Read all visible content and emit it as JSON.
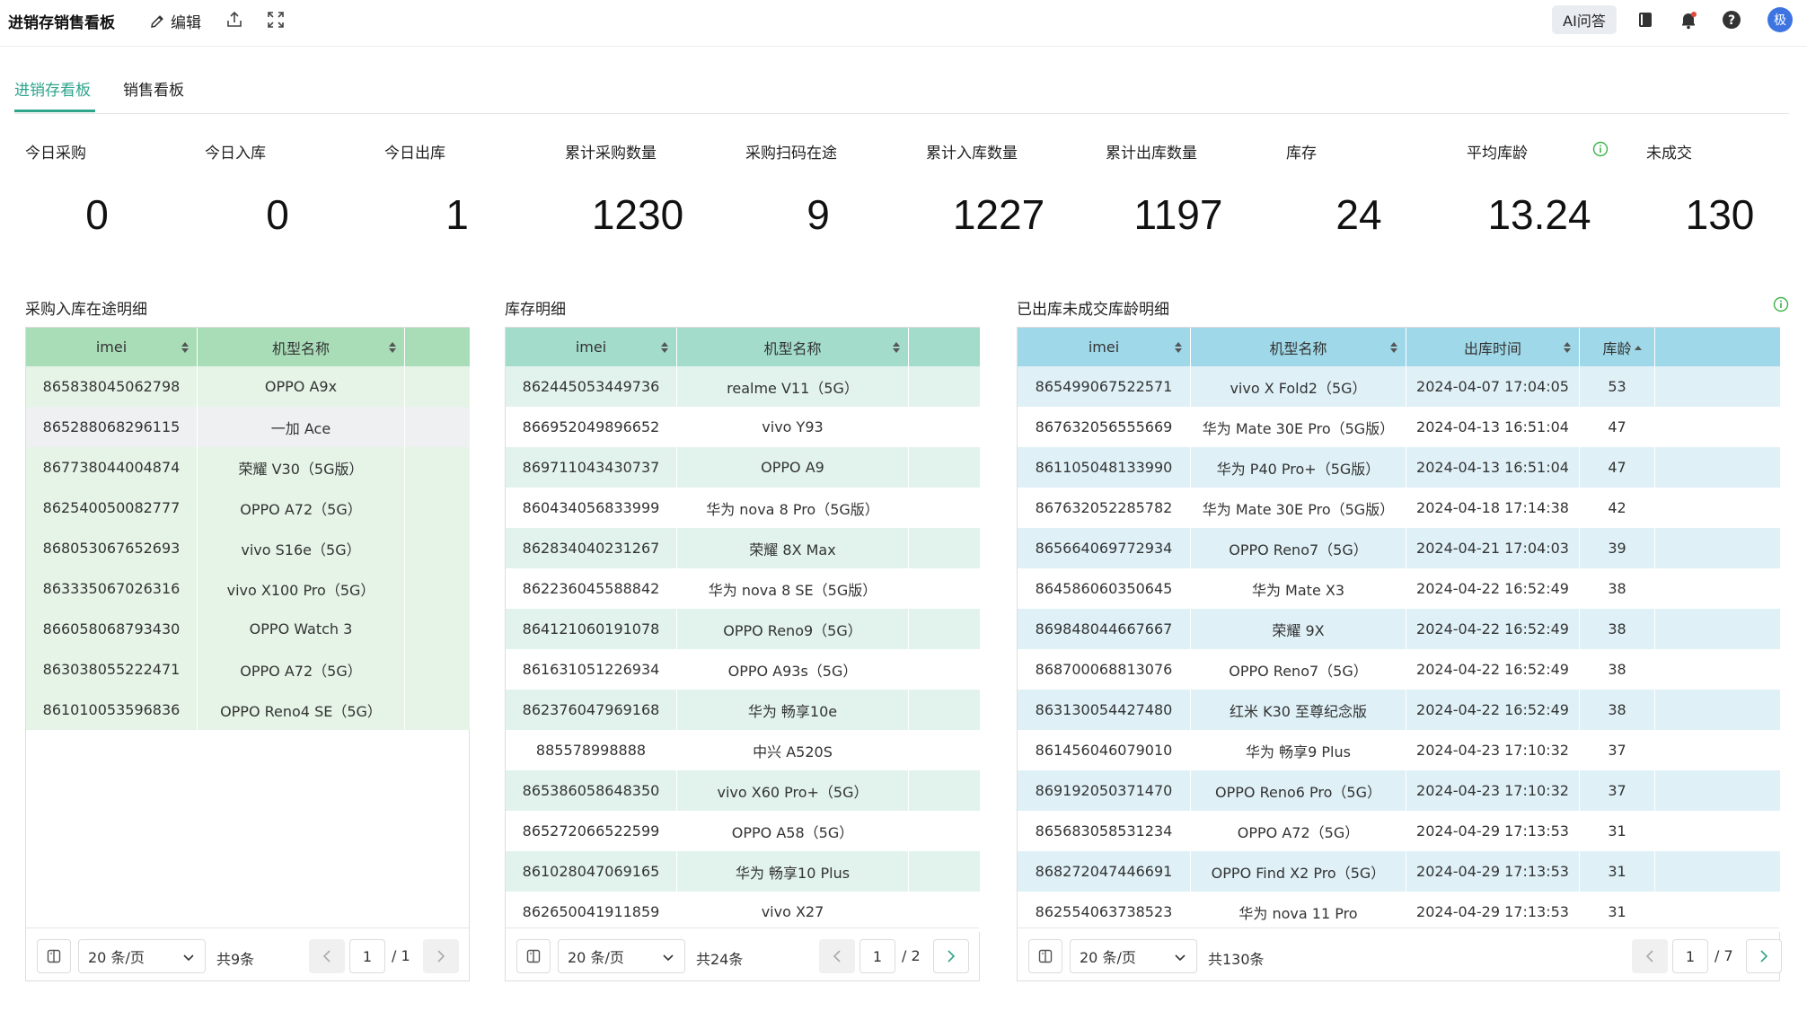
{
  "header": {
    "title": "进销存销售看板",
    "edit_label": "编辑",
    "ai_label": "AI问答",
    "avatar_text": "极"
  },
  "tabs": [
    {
      "label": "进销存看板",
      "active": true
    },
    {
      "label": "销售看板",
      "active": false
    }
  ],
  "kpis": [
    {
      "label": "今日采购",
      "value": "0"
    },
    {
      "label": "今日入库",
      "value": "0"
    },
    {
      "label": "今日出库",
      "value": "1"
    },
    {
      "label": "累计采购数量",
      "value": "1230"
    },
    {
      "label": "采购扫码在途",
      "value": "9"
    },
    {
      "label": "累计入库数量",
      "value": "1227"
    },
    {
      "label": "累计出库数量",
      "value": "1197"
    },
    {
      "label": "库存",
      "value": "24"
    },
    {
      "label": "平均库龄",
      "value": "13.24"
    },
    {
      "label": "未成交",
      "value": "130"
    }
  ],
  "tables": [
    {
      "title": "采购入库在途明细",
      "header_color": "#a9ddb8",
      "row_color": "#e5f4e7",
      "columns": [
        "imei",
        "机型名称",
        ""
      ],
      "rows": [
        [
          "865838045062798",
          "OPPO A9x",
          ""
        ],
        [
          "865288068296115",
          "一加 Ace",
          ""
        ],
        [
          "867738044004874",
          "荣耀 V30（5G版）",
          ""
        ],
        [
          "862540050082777",
          "OPPO A72（5G）",
          ""
        ],
        [
          "868053067652693",
          "vivo S16e（5G）",
          ""
        ],
        [
          "863335067026316",
          "vivo X100 Pro（5G）",
          ""
        ],
        [
          "866058068793430",
          "OPPO Watch 3",
          ""
        ],
        [
          "863038055222471",
          "OPPO A72（5G）",
          ""
        ],
        [
          "861010053596836",
          "OPPO Reno4 SE（5G）",
          ""
        ]
      ],
      "page_size": "20 条/页",
      "total": "共9条",
      "current_page": "1",
      "total_pages": "/ 1"
    },
    {
      "title": "库存明细",
      "header_color": "#a3dccb",
      "row_color": "#e2f3ed",
      "columns": [
        "imei",
        "机型名称",
        ""
      ],
      "rows": [
        [
          "862445053449736",
          "realme V11（5G）",
          ""
        ],
        [
          "866952049896652",
          "vivo Y93",
          ""
        ],
        [
          "869711043430737",
          "OPPO A9",
          ""
        ],
        [
          "860434056833999",
          "华为 nova 8 Pro（5G版）",
          ""
        ],
        [
          "862834040231267",
          "荣耀 8X Max",
          ""
        ],
        [
          "862236045588842",
          "华为 nova 8 SE（5G版）",
          ""
        ],
        [
          "864121060191078",
          "OPPO Reno9（5G）",
          ""
        ],
        [
          "861631051226934",
          "OPPO A93s（5G）",
          ""
        ],
        [
          "862376047969168",
          "华为 畅享10e",
          ""
        ],
        [
          "885578998888",
          "中兴 A520S",
          ""
        ],
        [
          "865386058648350",
          "vivo X60 Pro+（5G）",
          ""
        ],
        [
          "865272066522599",
          "OPPO A58（5G）",
          ""
        ],
        [
          "861028047069165",
          "华为 畅享10 Plus",
          ""
        ],
        [
          "862650041911859",
          "vivo X27",
          ""
        ]
      ],
      "page_size": "20 条/页",
      "total": "共24条",
      "current_page": "1",
      "total_pages": "/ 2"
    },
    {
      "title": "已出库未成交库龄明细",
      "header_color": "#9fd8e8",
      "row_color": "#dff1f7",
      "columns": [
        "imei",
        "机型名称",
        "出库时间",
        "库龄",
        ""
      ],
      "rows": [
        [
          "865499067522571",
          "vivo X Fold2（5G）",
          "2024-04-07 17:04:05",
          "53",
          ""
        ],
        [
          "867632056555669",
          "华为 Mate 30E Pro（5G版）",
          "2024-04-13 16:51:04",
          "47",
          ""
        ],
        [
          "861105048133990",
          "华为 P40 Pro+（5G版）",
          "2024-04-13 16:51:04",
          "47",
          ""
        ],
        [
          "867632052285782",
          "华为 Mate 30E Pro（5G版）",
          "2024-04-18 17:14:38",
          "42",
          ""
        ],
        [
          "865664069772934",
          "OPPO Reno7（5G）",
          "2024-04-21 17:04:03",
          "39",
          ""
        ],
        [
          "864586060350645",
          "华为 Mate X3",
          "2024-04-22 16:52:49",
          "38",
          ""
        ],
        [
          "869848044667667",
          "荣耀 9X",
          "2024-04-22 16:52:49",
          "38",
          ""
        ],
        [
          "868700068813076",
          "OPPO Reno7（5G）",
          "2024-04-22 16:52:49",
          "38",
          ""
        ],
        [
          "863130054427480",
          "红米 K30 至尊纪念版",
          "2024-04-22 16:52:49",
          "38",
          ""
        ],
        [
          "861456046079010",
          "华为 畅享9 Plus",
          "2024-04-23 17:10:32",
          "37",
          ""
        ],
        [
          "869192050371470",
          "OPPO Reno6 Pro（5G）",
          "2024-04-23 17:10:32",
          "37",
          ""
        ],
        [
          "865683058531234",
          "OPPO A72（5G）",
          "2024-04-29 17:13:53",
          "31",
          ""
        ],
        [
          "868272047446691",
          "OPPO Find X2 Pro（5G）",
          "2024-04-29 17:13:53",
          "31",
          ""
        ],
        [
          "862554063738523",
          "华为 nova 11 Pro",
          "2024-04-29 17:13:53",
          "31",
          ""
        ]
      ],
      "page_size": "20 条/页",
      "total": "共130条",
      "current_page": "1",
      "total_pages": "/ 7"
    }
  ],
  "icons": {
    "edit": "pencil-icon",
    "share": "share-icon",
    "fullscreen": "fullscreen-icon",
    "book": "book-icon",
    "bell": "bell-icon",
    "help": "help-icon",
    "info": "info-icon",
    "sort": "sort-icon",
    "sort_desc": "sort-desc-icon",
    "column_settings": "column-settings-icon",
    "chevron_down": "chevron-down-icon",
    "prev": "chevron-left-icon",
    "next": "chevron-right-icon"
  },
  "colors": {
    "accent": "#2ea48d",
    "avatar": "#3d74e2",
    "info_green": "#3bb34a"
  }
}
